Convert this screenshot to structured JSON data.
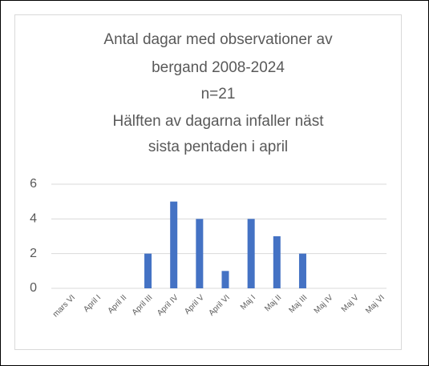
{
  "chart_data": {
    "type": "bar",
    "title": [
      "Antal dagar med observationer av",
      "bergand 2008-2024",
      "n=21",
      "Hälften av dagarna infaller näst",
      "sista pentaden i april"
    ],
    "categories": [
      "mars VI",
      "April I",
      "April II",
      "April III",
      "April IV",
      "April V",
      "April VI",
      "Maj I",
      "Maj II",
      "Maj III",
      "Maj IV",
      "Maj V",
      "Maj VI"
    ],
    "values": [
      0,
      0,
      0,
      2,
      5,
      4,
      1,
      4,
      3,
      2,
      0,
      0,
      0
    ],
    "color": "#4472c4",
    "ylim": [
      0,
      6
    ],
    "yticks": [
      0,
      2,
      4,
      6
    ],
    "grid": true
  }
}
